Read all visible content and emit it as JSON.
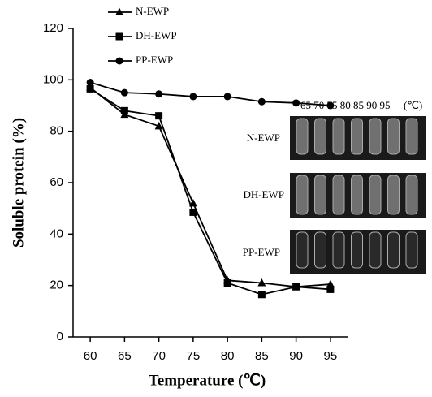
{
  "chart_data": {
    "type": "line",
    "xlabel": "Temperature (℃)",
    "ylabel": "Soluble protein (%)",
    "x": [
      60,
      65,
      70,
      75,
      80,
      85,
      90,
      95
    ],
    "xlim": [
      57.5,
      97.5
    ],
    "xticks": [
      60,
      65,
      70,
      75,
      80,
      85,
      90,
      95
    ],
    "ylim": [
      0,
      120
    ],
    "yticks": [
      0,
      20,
      40,
      60,
      80,
      100,
      120
    ],
    "legend": "top-left",
    "series": [
      {
        "name": "N-EWP",
        "color": "#000000",
        "marker": "triangle",
        "values": [
          97,
          86.5,
          82,
          52,
          22,
          21,
          19.5,
          20.5
        ]
      },
      {
        "name": "DH-EWP",
        "color": "#000000",
        "marker": "square",
        "values": [
          96.5,
          88,
          86,
          48.5,
          21,
          16.5,
          19.5,
          18.5
        ]
      },
      {
        "name": "PP-EWP",
        "color": "#000000",
        "marker": "circle",
        "values": [
          99,
          95,
          94.5,
          93.5,
          93.5,
          91.5,
          91,
          90
        ]
      }
    ],
    "inset": {
      "header": "65 70 75 80 85 90 95",
      "unit": "(℃)",
      "rows": [
        "N-EWP",
        "DH-EWP",
        "PP-EWP"
      ]
    }
  }
}
